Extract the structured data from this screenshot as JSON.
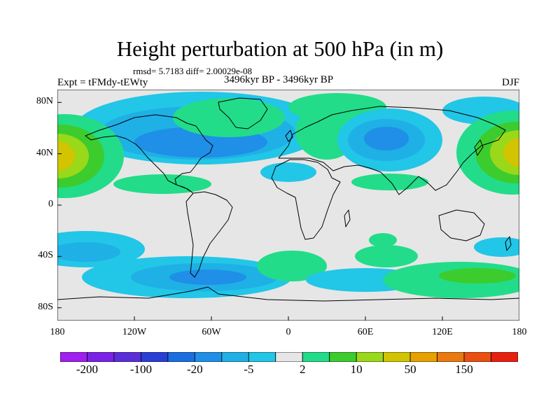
{
  "figure": {
    "title": "Height perturbation at 500 hPa (in m)",
    "stats": "rmsd= 5.7183 diff= 2.00029e-08",
    "experiment": "Expt = tFMdy-tEWty",
    "period": "3496kyr BP - 3496kyr BP",
    "season": "DJF"
  },
  "axes": {
    "lat_ticks": [
      {
        "value": 80,
        "label": "80N"
      },
      {
        "value": 40,
        "label": "40N"
      },
      {
        "value": 0,
        "label": "0"
      },
      {
        "value": -40,
        "label": "40S"
      },
      {
        "value": -80,
        "label": "80S"
      }
    ],
    "lon_ticks": [
      {
        "value": -180,
        "label": "180"
      },
      {
        "value": -120,
        "label": "120W"
      },
      {
        "value": -60,
        "label": "60W"
      },
      {
        "value": 0,
        "label": "0"
      },
      {
        "value": 60,
        "label": "60E"
      },
      {
        "value": 120,
        "label": "120E"
      },
      {
        "value": 180,
        "label": "180"
      }
    ],
    "lat_range": [
      -90,
      90
    ],
    "lon_range": [
      -180,
      180
    ]
  },
  "colorbar": {
    "colors": [
      "#a020f0",
      "#7a22e6",
      "#5a2fd8",
      "#2a3fd6",
      "#1a6ee0",
      "#1f8fe8",
      "#1fb0e6",
      "#22c6e6",
      "#e6e6e6",
      "#22dc8a",
      "#3ccc2e",
      "#9ad81a",
      "#d2c400",
      "#e8a000",
      "#ea7a10",
      "#ea5010",
      "#e82010"
    ],
    "labels": [
      {
        "after_box": 1,
        "text": "-200"
      },
      {
        "after_box": 3,
        "text": "-100"
      },
      {
        "after_box": 5,
        "text": "-20"
      },
      {
        "after_box": 7,
        "text": "-5"
      },
      {
        "after_box": 9,
        "text": "2"
      },
      {
        "after_box": 11,
        "text": "10"
      },
      {
        "after_box": 13,
        "text": "50"
      },
      {
        "after_box": 15,
        "text": "150"
      }
    ]
  }
}
